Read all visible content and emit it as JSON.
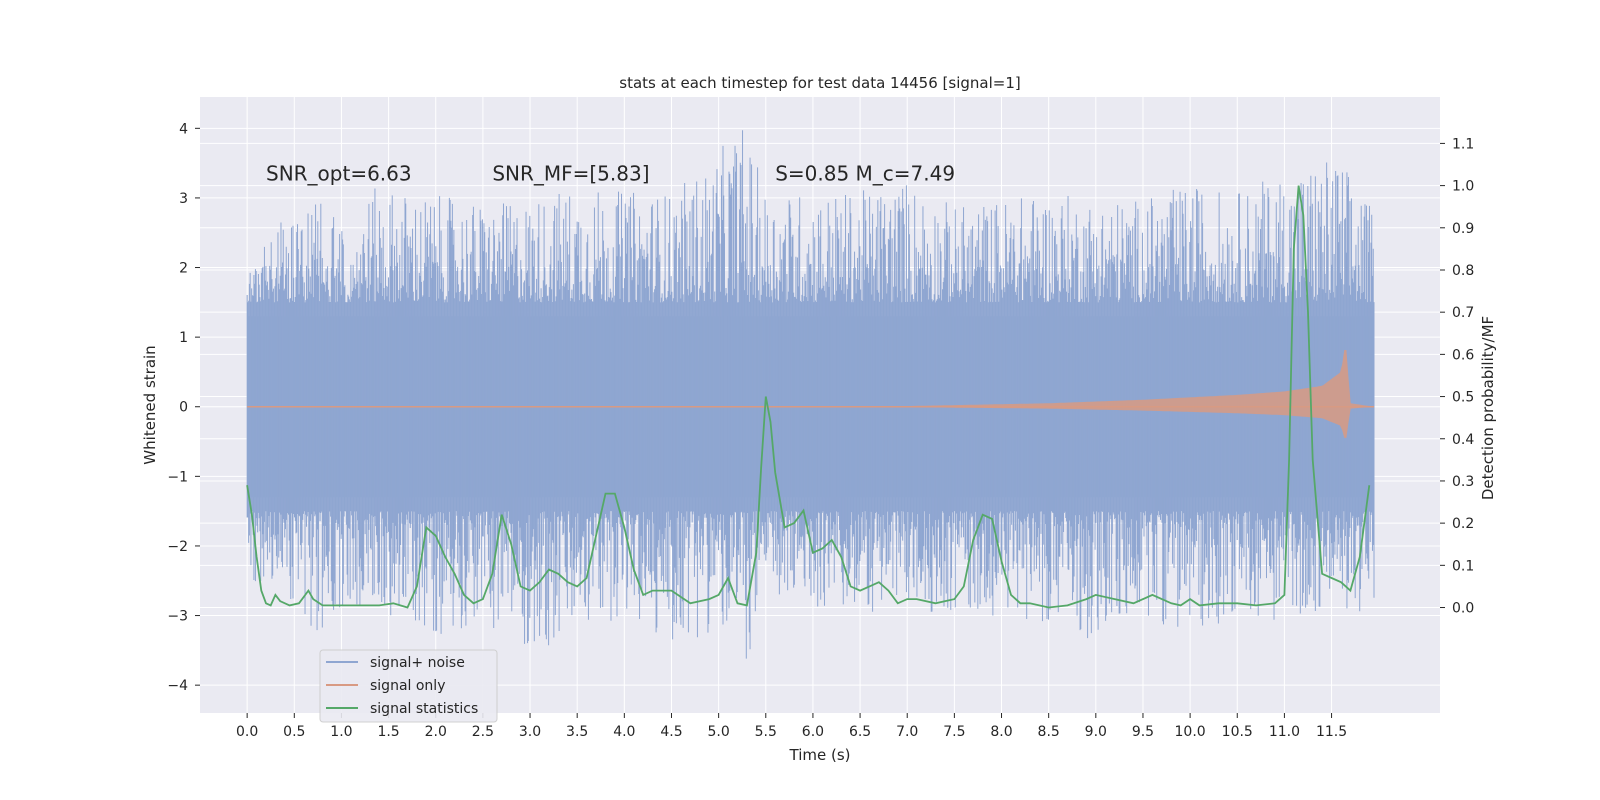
{
  "chart_data": {
    "type": "line",
    "title": "stats at each timestep for test data 14456 [signal=1]",
    "xlabel": "Time (s)",
    "ylabel_left": "Whitened strain",
    "ylabel_right": "Detection probability/MF",
    "xlim": [
      -0.5,
      12.65
    ],
    "ylim_left": [
      -4.4,
      4.45
    ],
    "ylim_right": [
      -0.25,
      1.21
    ],
    "x_ticks": [
      0.0,
      0.5,
      1.0,
      1.5,
      2.0,
      2.5,
      3.0,
      3.5,
      4.0,
      4.5,
      5.0,
      5.5,
      6.0,
      6.5,
      7.0,
      7.5,
      8.0,
      8.5,
      9.0,
      9.5,
      10.0,
      10.5,
      11.0,
      11.5
    ],
    "x_tick_labels": [
      "0.0",
      "0.5",
      "1.0",
      "1.5",
      "2.0",
      "2.5",
      "3.0",
      "3.5",
      "4.0",
      "4.5",
      "5.0",
      "5.5",
      "6.0",
      "6.5",
      "7.0",
      "7.5",
      "8.0",
      "8.5",
      "9.0",
      "9.5",
      "10.0",
      "10.5",
      "11.0",
      "11.5"
    ],
    "y_left_ticks": [
      4,
      3,
      2,
      1,
      0,
      -1,
      -2,
      -3,
      -4
    ],
    "y_left_tick_labels": [
      "4",
      "3",
      "2",
      "1",
      "0",
      "−1",
      "−2",
      "−3",
      "−4"
    ],
    "y_right_ticks": [
      1.1,
      1.0,
      0.9,
      0.8,
      0.7,
      0.6,
      0.5,
      0.4,
      0.3,
      0.2,
      0.1,
      0.0
    ],
    "y_right_tick_labels": [
      "1.1",
      "1.0",
      "0.9",
      "0.8",
      "0.7",
      "0.6",
      "0.5",
      "0.4",
      "0.3",
      "0.2",
      "0.1",
      "0.0"
    ],
    "grid": true,
    "legend_placement": "lower-left",
    "annotations": [
      {
        "text": "SNR_opt=6.63",
        "x": 0.2,
        "y": 3.35
      },
      {
        "text": "SNR_MF=[5.83]",
        "x": 2.6,
        "y": 3.35
      },
      {
        "text": "S=0.85  M_c=7.49",
        "x": 5.6,
        "y": 3.35
      }
    ],
    "series": [
      {
        "name": "signal+ noise",
        "color": "#8fa6d1",
        "axis": "left",
        "style": "noise",
        "x_range": [
          0.0,
          11.95
        ],
        "envelope_peaks": [
          [
            0.0,
            2.0
          ],
          [
            0.3,
            2.6
          ],
          [
            0.8,
            3.0
          ],
          [
            1.0,
            2.7
          ],
          [
            1.4,
            3.2
          ],
          [
            1.7,
            3.1
          ],
          [
            2.2,
            3.0
          ],
          [
            2.6,
            2.9
          ],
          [
            3.0,
            3.0
          ],
          [
            3.5,
            3.2
          ],
          [
            4.0,
            3.1
          ],
          [
            4.5,
            3.1
          ],
          [
            4.9,
            3.5
          ],
          [
            5.25,
            4.1
          ],
          [
            5.5,
            3.1
          ],
          [
            6.0,
            3.1
          ],
          [
            6.5,
            3.1
          ],
          [
            7.0,
            3.3
          ],
          [
            7.5,
            2.9
          ],
          [
            8.0,
            3.0
          ],
          [
            8.5,
            3.1
          ],
          [
            9.0,
            3.0
          ],
          [
            9.5,
            3.0
          ],
          [
            10.0,
            3.2
          ],
          [
            10.5,
            3.1
          ],
          [
            11.0,
            3.4
          ],
          [
            11.35,
            3.6
          ],
          [
            11.6,
            3.6
          ],
          [
            11.95,
            2.8
          ]
        ],
        "envelope_troughs": [
          [
            0.0,
            -2.5
          ],
          [
            0.3,
            -2.6
          ],
          [
            0.8,
            -3.4
          ],
          [
            1.0,
            -2.9
          ],
          [
            1.5,
            -3.0
          ],
          [
            2.0,
            -3.3
          ],
          [
            2.5,
            -3.1
          ],
          [
            3.1,
            -3.6
          ],
          [
            3.5,
            -3.3
          ],
          [
            4.0,
            -3.0
          ],
          [
            4.4,
            -3.5
          ],
          [
            5.0,
            -3.2
          ],
          [
            5.25,
            -3.9
          ],
          [
            5.5,
            -2.8
          ],
          [
            6.0,
            -2.9
          ],
          [
            6.5,
            -3.0
          ],
          [
            7.0,
            -2.9
          ],
          [
            7.5,
            -3.0
          ],
          [
            8.0,
            -3.0
          ],
          [
            8.5,
            -3.1
          ],
          [
            9.0,
            -3.4
          ],
          [
            9.5,
            -3.0
          ],
          [
            10.0,
            -3.3
          ],
          [
            10.5,
            -3.0
          ],
          [
            11.0,
            -3.1
          ],
          [
            11.5,
            -2.9
          ],
          [
            11.95,
            -3.0
          ]
        ]
      },
      {
        "name": "signal only",
        "color": "#d89a83",
        "axis": "left",
        "style": "chirp",
        "x_start": 7.0,
        "x_peak": 11.65,
        "x_end": 11.95,
        "peak_amplitude": 0.95,
        "amplitude_at_x": [
          [
            7.0,
            0.01
          ],
          [
            8.5,
            0.05
          ],
          [
            9.5,
            0.1
          ],
          [
            10.5,
            0.17
          ],
          [
            11.0,
            0.22
          ],
          [
            11.4,
            0.3
          ],
          [
            11.6,
            0.5
          ],
          [
            11.65,
            0.95
          ],
          [
            11.7,
            0.05
          ],
          [
            11.95,
            0.0
          ]
        ]
      },
      {
        "name": "signal statistics",
        "color": "#55a868",
        "axis": "right",
        "style": "line",
        "points": [
          [
            0.0,
            0.29
          ],
          [
            0.05,
            0.22
          ],
          [
            0.1,
            0.12
          ],
          [
            0.15,
            0.04
          ],
          [
            0.2,
            0.01
          ],
          [
            0.25,
            0.005
          ],
          [
            0.3,
            0.03
          ],
          [
            0.35,
            0.015
          ],
          [
            0.45,
            0.005
          ],
          [
            0.55,
            0.01
          ],
          [
            0.65,
            0.04
          ],
          [
            0.7,
            0.02
          ],
          [
            0.8,
            0.005
          ],
          [
            1.0,
            0.005
          ],
          [
            1.2,
            0.005
          ],
          [
            1.4,
            0.005
          ],
          [
            1.55,
            0.01
          ],
          [
            1.7,
            0.0
          ],
          [
            1.8,
            0.05
          ],
          [
            1.9,
            0.19
          ],
          [
            2.0,
            0.17
          ],
          [
            2.1,
            0.12
          ],
          [
            2.2,
            0.08
          ],
          [
            2.3,
            0.03
          ],
          [
            2.4,
            0.01
          ],
          [
            2.5,
            0.02
          ],
          [
            2.6,
            0.08
          ],
          [
            2.7,
            0.22
          ],
          [
            2.8,
            0.15
          ],
          [
            2.9,
            0.05
          ],
          [
            3.0,
            0.04
          ],
          [
            3.1,
            0.06
          ],
          [
            3.2,
            0.09
          ],
          [
            3.3,
            0.08
          ],
          [
            3.4,
            0.06
          ],
          [
            3.5,
            0.05
          ],
          [
            3.6,
            0.07
          ],
          [
            3.7,
            0.17
          ],
          [
            3.8,
            0.27
          ],
          [
            3.9,
            0.27
          ],
          [
            4.0,
            0.19
          ],
          [
            4.1,
            0.09
          ],
          [
            4.2,
            0.03
          ],
          [
            4.3,
            0.04
          ],
          [
            4.5,
            0.04
          ],
          [
            4.7,
            0.01
          ],
          [
            4.9,
            0.02
          ],
          [
            5.0,
            0.03
          ],
          [
            5.1,
            0.07
          ],
          [
            5.2,
            0.01
          ],
          [
            5.3,
            0.005
          ],
          [
            5.4,
            0.13
          ],
          [
            5.45,
            0.33
          ],
          [
            5.5,
            0.5
          ],
          [
            5.55,
            0.44
          ],
          [
            5.6,
            0.32
          ],
          [
            5.7,
            0.19
          ],
          [
            5.8,
            0.2
          ],
          [
            5.9,
            0.23
          ],
          [
            6.0,
            0.13
          ],
          [
            6.1,
            0.14
          ],
          [
            6.2,
            0.16
          ],
          [
            6.3,
            0.12
          ],
          [
            6.4,
            0.05
          ],
          [
            6.5,
            0.04
          ],
          [
            6.6,
            0.05
          ],
          [
            6.7,
            0.06
          ],
          [
            6.8,
            0.04
          ],
          [
            6.9,
            0.01
          ],
          [
            7.0,
            0.02
          ],
          [
            7.1,
            0.02
          ],
          [
            7.3,
            0.01
          ],
          [
            7.5,
            0.02
          ],
          [
            7.6,
            0.05
          ],
          [
            7.7,
            0.16
          ],
          [
            7.8,
            0.22
          ],
          [
            7.9,
            0.21
          ],
          [
            8.0,
            0.11
          ],
          [
            8.1,
            0.03
          ],
          [
            8.2,
            0.01
          ],
          [
            8.3,
            0.01
          ],
          [
            8.5,
            0.0
          ],
          [
            8.7,
            0.005
          ],
          [
            8.9,
            0.02
          ],
          [
            9.0,
            0.03
          ],
          [
            9.2,
            0.02
          ],
          [
            9.4,
            0.01
          ],
          [
            9.6,
            0.03
          ],
          [
            9.8,
            0.01
          ],
          [
            9.9,
            0.005
          ],
          [
            10.0,
            0.02
          ],
          [
            10.1,
            0.005
          ],
          [
            10.3,
            0.01
          ],
          [
            10.5,
            0.01
          ],
          [
            10.7,
            0.005
          ],
          [
            10.9,
            0.01
          ],
          [
            11.0,
            0.03
          ],
          [
            11.05,
            0.35
          ],
          [
            11.1,
            0.85
          ],
          [
            11.15,
            1.0
          ],
          [
            11.2,
            0.93
          ],
          [
            11.25,
            0.7
          ],
          [
            11.3,
            0.35
          ],
          [
            11.4,
            0.08
          ],
          [
            11.5,
            0.07
          ],
          [
            11.6,
            0.06
          ],
          [
            11.7,
            0.04
          ],
          [
            11.8,
            0.12
          ],
          [
            11.9,
            0.29
          ]
        ]
      }
    ]
  }
}
